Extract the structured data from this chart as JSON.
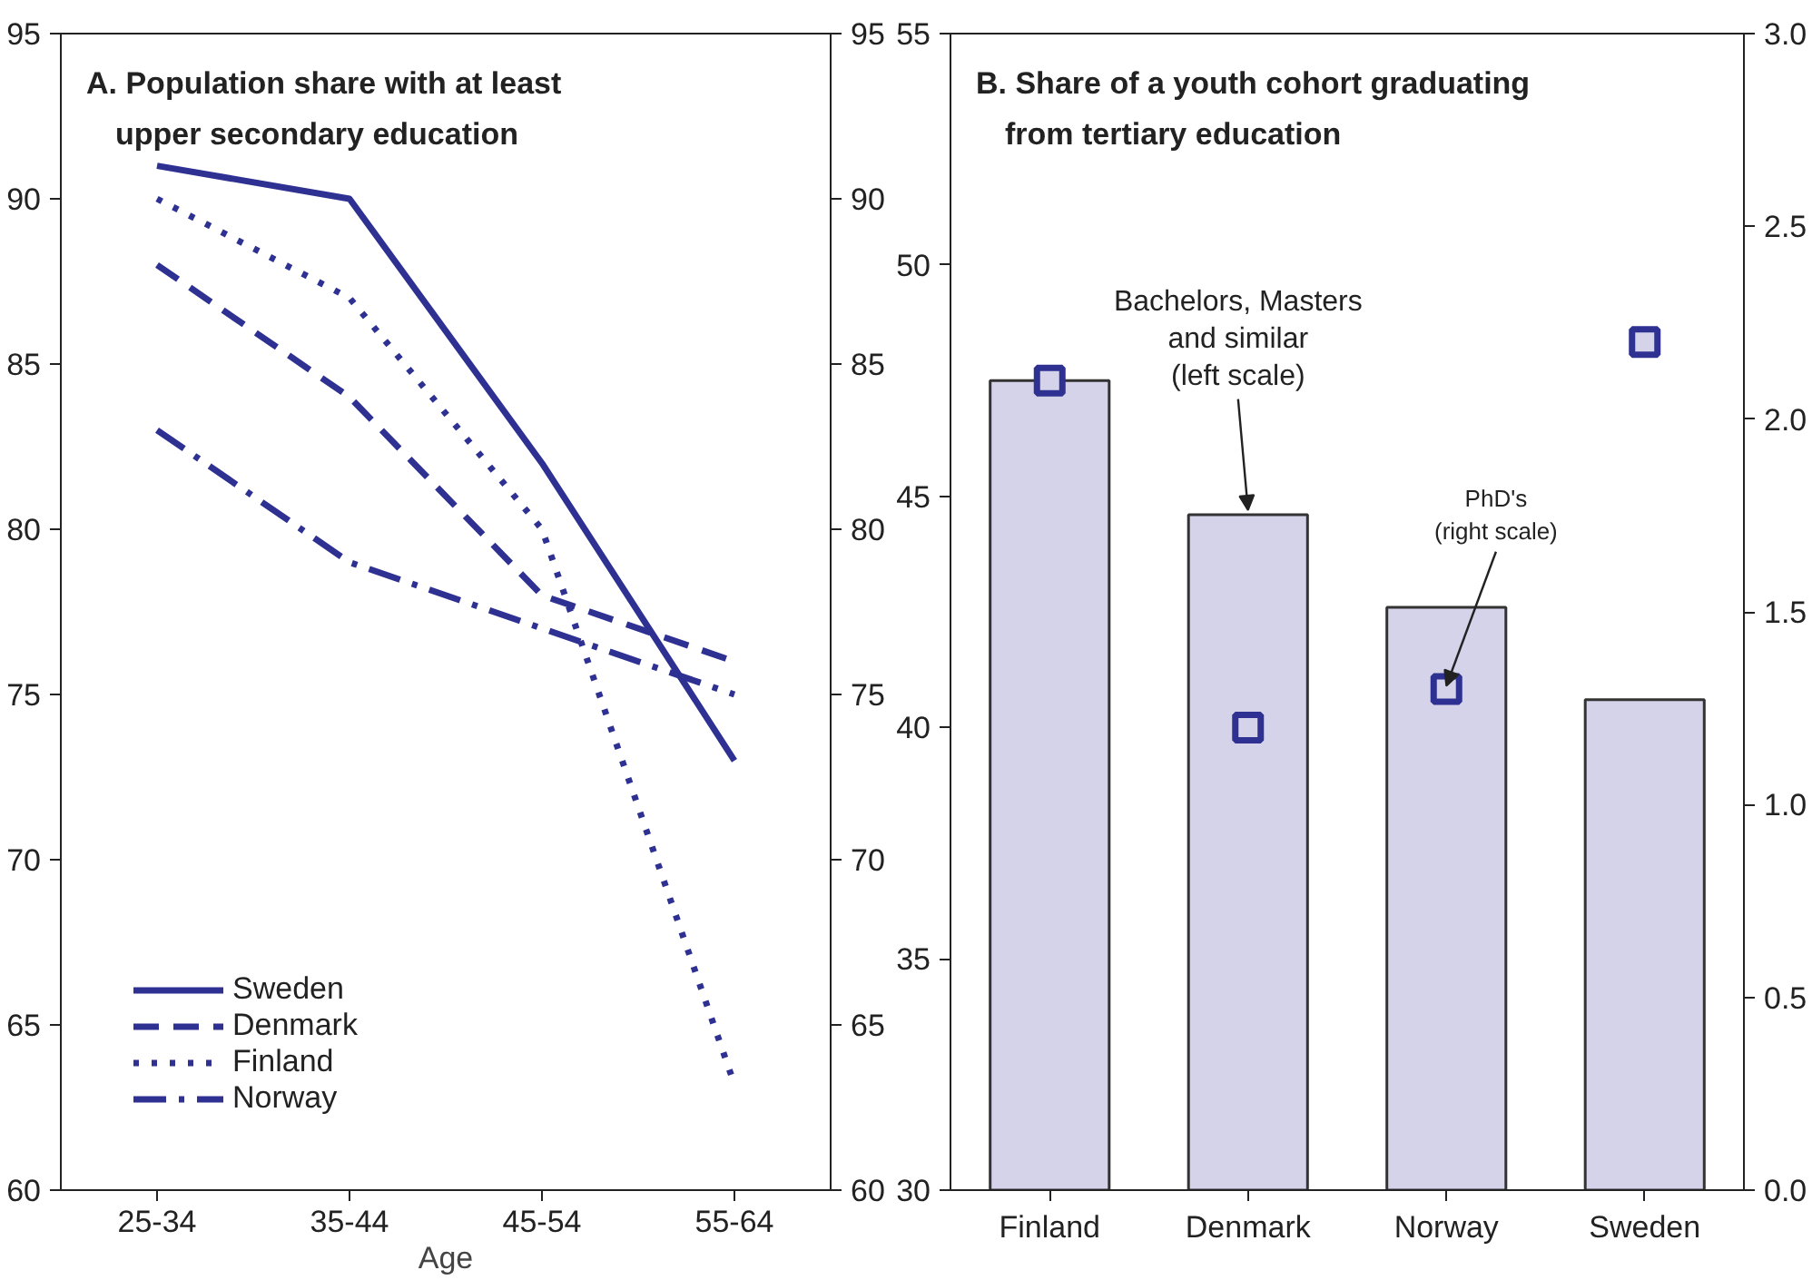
{
  "chart_data": [
    {
      "type": "line",
      "title": "A. Population share with at least upper secondary education",
      "xlabel": "Age",
      "categories": [
        "25-34",
        "35-44",
        "45-54",
        "55-64"
      ],
      "series": [
        {
          "name": "Sweden",
          "color": "#2e3192",
          "line_style": "solid",
          "values": [
            91,
            90,
            82,
            73
          ]
        },
        {
          "name": "Denmark",
          "color": "#2e3192",
          "line_style": "dashed",
          "values": [
            88,
            84,
            78,
            76
          ]
        },
        {
          "name": "Finland",
          "color": "#2e3192",
          "line_style": "dotted",
          "values": [
            90,
            87,
            80,
            63.2
          ]
        },
        {
          "name": "Norway",
          "color": "#2e3192",
          "line_style": "dashdot",
          "values": [
            83,
            79,
            77,
            75
          ]
        }
      ],
      "ylim": [
        60,
        95
      ],
      "yticks": [
        60,
        65,
        70,
        75,
        80,
        85,
        90,
        95
      ],
      "y2lim": [
        60,
        95
      ],
      "y2ticks": [
        60,
        65,
        70,
        75,
        80,
        85,
        90,
        95
      ],
      "grid": false,
      "legend": "bottom left"
    },
    {
      "type": "bar",
      "title": "B. Share of a youth cohort graduating from tertiary education",
      "categories": [
        "Finland",
        "Denmark",
        "Norway",
        "Sweden"
      ],
      "series": [
        {
          "type": "bar",
          "color": "#d5d3ea",
          "values": [
            47.5,
            44.6,
            42.6,
            40.6
          ]
        },
        {
          "type": "scatter",
          "axis": "y2",
          "color": "#2e3192",
          "marker": "square",
          "values": [
            2.1,
            1.2,
            1.3,
            2.2
          ]
        }
      ],
      "ylim": [
        30,
        55
      ],
      "yticks": [
        30,
        35,
        40,
        45,
        50,
        55
      ],
      "y2lim": [
        0,
        3
      ],
      "y2ticks": [
        {
          "value": 0,
          "label": "0.0"
        },
        {
          "value": 0.5,
          "label": "0.5"
        },
        {
          "value": 1,
          "label": "1.0"
        },
        {
          "value": 1.5,
          "label": "1.5"
        },
        {
          "value": 2,
          "label": "2.0"
        },
        {
          "value": 2.5,
          "label": "2.5"
        },
        {
          "value": 3,
          "label": "3.0"
        }
      ],
      "annotations": [
        {
          "text": "Bachelors, Masters and similar (left scale)",
          "x": "Denmark",
          "y": 44.6
        },
        {
          "text": "PhD's (right scale)",
          "x": "Norway",
          "y": 40.8
        }
      ],
      "grid": false,
      "legend": false
    }
  ]
}
